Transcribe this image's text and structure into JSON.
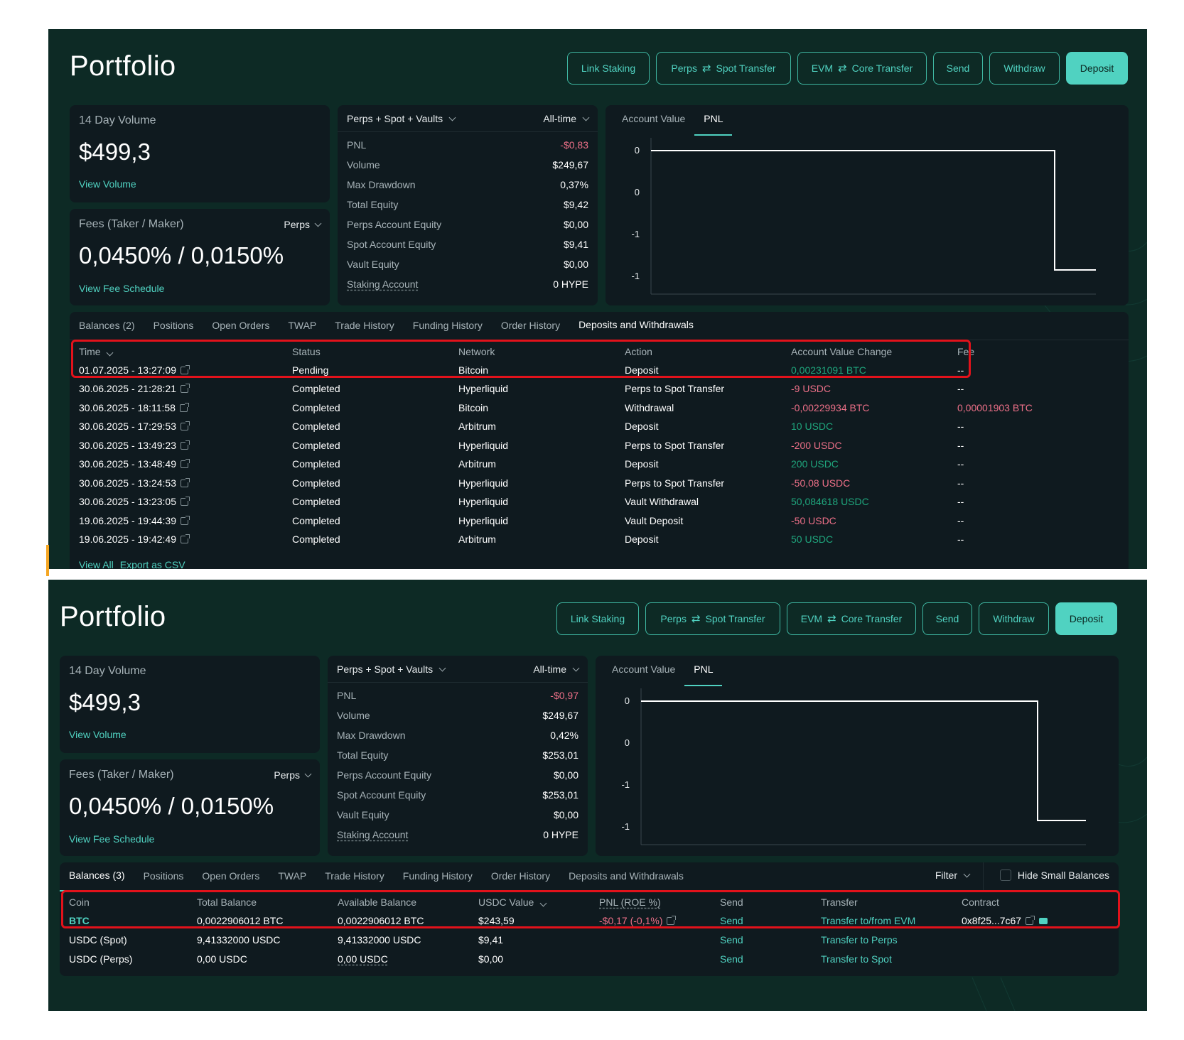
{
  "before": {
    "title": "Portfolio",
    "buttons": {
      "link_staking": "Link Staking",
      "perps_spot_a": "Perps",
      "perps_spot_b": "Spot Transfer",
      "evm_core_a": "EVM",
      "evm_core_b": "Core Transfer",
      "send": "Send",
      "withdraw": "Withdraw",
      "deposit": "Deposit"
    },
    "volume": {
      "label": "14 Day Volume",
      "value": "$499,3",
      "link": "View Volume"
    },
    "fees": {
      "label": "Fees (Taker / Maker)",
      "selector": "Perps",
      "value": "0,0450% / 0,0150%",
      "link": "View Fee Schedule"
    },
    "stats": {
      "scope": "Perps + Spot + Vaults",
      "period": "All-time",
      "rows": [
        {
          "k": "PNL",
          "v": "-$0,83"
        },
        {
          "k": "Volume",
          "v": "$249,67"
        },
        {
          "k": "Max Drawdown",
          "v": "0,37%"
        },
        {
          "k": "Total Equity",
          "v": "$9,42"
        },
        {
          "k": "Perps Account Equity",
          "v": "$0,00"
        },
        {
          "k": "Spot Account Equity",
          "v": "$9,41"
        },
        {
          "k": "Vault Equity",
          "v": "$0,00"
        },
        {
          "k": "Staking Account",
          "v": "0 HYPE"
        }
      ]
    },
    "chart_tabs": [
      "Account Value",
      "PNL"
    ],
    "chart_ticks": [
      "0",
      "0",
      "-1",
      "-1"
    ],
    "tabs": [
      "Balances (2)",
      "Positions",
      "Open Orders",
      "TWAP",
      "Trade History",
      "Funding History",
      "Order History",
      "Deposits and Withdrawals"
    ],
    "columns": [
      "Time",
      "Status",
      "Network",
      "Action",
      "Account Value Change",
      "Fee"
    ],
    "rows": [
      {
        "time": "01.07.2025 - 13:27:09",
        "status": "Pending",
        "network": "Bitcoin",
        "action": "Deposit",
        "change": "0,00231091 BTC",
        "sign": "pos",
        "fee": "--"
      },
      {
        "time": "30.06.2025 - 21:28:21",
        "status": "Completed",
        "network": "Hyperliquid",
        "action": "Perps to Spot Transfer",
        "change": "-9 USDC",
        "sign": "neg",
        "fee": "--"
      },
      {
        "time": "30.06.2025 - 18:11:58",
        "status": "Completed",
        "network": "Bitcoin",
        "action": "Withdrawal",
        "change": "-0,00229934 BTC",
        "sign": "neg",
        "fee": "0,00001903 BTC"
      },
      {
        "time": "30.06.2025 - 17:29:53",
        "status": "Completed",
        "network": "Arbitrum",
        "action": "Deposit",
        "change": "10 USDC",
        "sign": "pos",
        "fee": "--"
      },
      {
        "time": "30.06.2025 - 13:49:23",
        "status": "Completed",
        "network": "Hyperliquid",
        "action": "Perps to Spot Transfer",
        "change": "-200 USDC",
        "sign": "neg",
        "fee": "--"
      },
      {
        "time": "30.06.2025 - 13:48:49",
        "status": "Completed",
        "network": "Arbitrum",
        "action": "Deposit",
        "change": "200 USDC",
        "sign": "pos",
        "fee": "--"
      },
      {
        "time": "30.06.2025 - 13:24:53",
        "status": "Completed",
        "network": "Hyperliquid",
        "action": "Perps to Spot Transfer",
        "change": "-50,08 USDC",
        "sign": "neg",
        "fee": "--"
      },
      {
        "time": "30.06.2025 - 13:23:05",
        "status": "Completed",
        "network": "Hyperliquid",
        "action": "Vault Withdrawal",
        "change": "50,084618 USDC",
        "sign": "pos",
        "fee": "--"
      },
      {
        "time": "19.06.2025 - 19:44:39",
        "status": "Completed",
        "network": "Hyperliquid",
        "action": "Vault Deposit",
        "change": "-50 USDC",
        "sign": "neg",
        "fee": "--"
      },
      {
        "time": "19.06.2025 - 19:42:49",
        "status": "Completed",
        "network": "Arbitrum",
        "action": "Deposit",
        "change": "50 USDC",
        "sign": "pos",
        "fee": "--"
      }
    ],
    "footer": {
      "view_all": "View All",
      "export": "Export as CSV"
    }
  },
  "after": {
    "title": "Portfolio",
    "buttons": {
      "link_staking": "Link Staking",
      "perps_spot_a": "Perps",
      "perps_spot_b": "Spot Transfer",
      "evm_core_a": "EVM",
      "evm_core_b": "Core Transfer",
      "send": "Send",
      "withdraw": "Withdraw",
      "deposit": "Deposit"
    },
    "volume": {
      "label": "14 Day Volume",
      "value": "$499,3",
      "link": "View Volume"
    },
    "fees": {
      "label": "Fees (Taker / Maker)",
      "selector": "Perps",
      "value": "0,0450% / 0,0150%",
      "link": "View Fee Schedule"
    },
    "stats": {
      "scope": "Perps + Spot + Vaults",
      "period": "All-time",
      "rows": [
        {
          "k": "PNL",
          "v": "-$0,97"
        },
        {
          "k": "Volume",
          "v": "$249,67"
        },
        {
          "k": "Max Drawdown",
          "v": "0,42%"
        },
        {
          "k": "Total Equity",
          "v": "$253,01"
        },
        {
          "k": "Perps Account Equity",
          "v": "$0,00"
        },
        {
          "k": "Spot Account Equity",
          "v": "$253,01"
        },
        {
          "k": "Vault Equity",
          "v": "$0,00"
        },
        {
          "k": "Staking Account",
          "v": "0 HYPE"
        }
      ]
    },
    "chart_tabs": [
      "Account Value",
      "PNL"
    ],
    "chart_ticks": [
      "0",
      "0",
      "-1",
      "-1"
    ],
    "tabs": [
      "Balances (3)",
      "Positions",
      "Open Orders",
      "TWAP",
      "Trade History",
      "Funding History",
      "Order History",
      "Deposits and Withdrawals"
    ],
    "filter": "Filter",
    "hide_small": "Hide Small Balances",
    "columns": [
      "Coin",
      "Total Balance",
      "Available Balance",
      "USDC Value",
      "PNL (ROE %)",
      "Send",
      "Transfer",
      "Contract"
    ],
    "rows": [
      {
        "coin": "BTC",
        "total": "0,0022906012 BTC",
        "available": "0,0022906012 BTC",
        "usdc": "$243,59",
        "pnl": "-$0,17 (-0,1%)",
        "send": "Send",
        "transfer": "Transfer to/from EVM",
        "contract": "0x8f25...7c67"
      },
      {
        "coin": "USDC (Spot)",
        "total": "9,41332000 USDC",
        "available": "9,41332000 USDC",
        "usdc": "$9,41",
        "pnl": "",
        "send": "Send",
        "transfer": "Transfer to Perps",
        "contract": ""
      },
      {
        "coin": "USDC (Perps)",
        "total": "0,00 USDC",
        "available": "0,00 USDC",
        "usdc": "$0,00",
        "pnl": "",
        "send": "Send",
        "transfer": "Transfer to Spot",
        "contract": ""
      }
    ]
  },
  "colors": {
    "background": "#0d2a25",
    "panel": "#0f1a1f",
    "accent": "#50d2c1",
    "negative": "#ed7088",
    "positive": "#1fa67d",
    "highlight": "#e2121b"
  }
}
